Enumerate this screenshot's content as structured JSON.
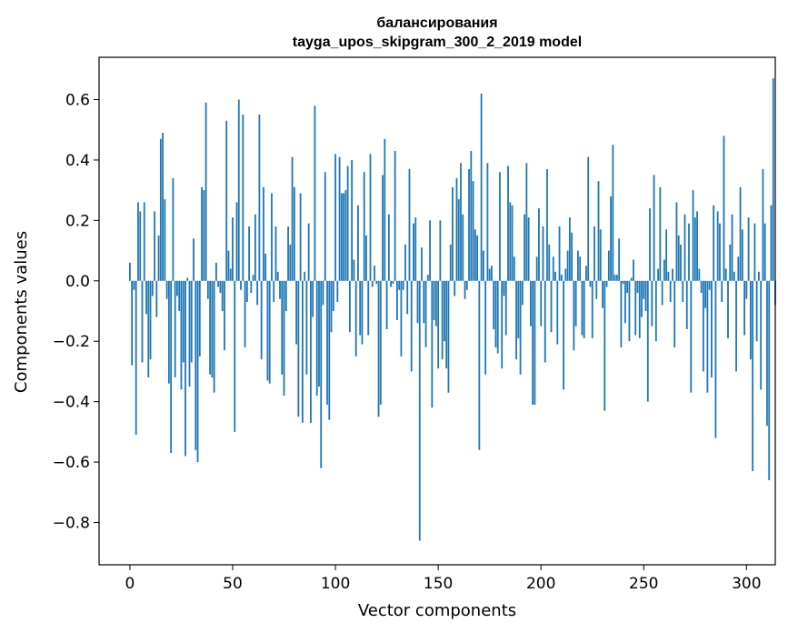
{
  "chart_data": {
    "type": "bar",
    "title_lines": [
      "балансирования",
      "tayga_upos_skipgram_300_2_2019 model"
    ],
    "xlabel": "Vector components",
    "ylabel": "Components values",
    "xlim": [
      -15,
      314
    ],
    "ylim": [
      -0.94,
      0.74
    ],
    "x_ticks": [
      0,
      50,
      100,
      150,
      200,
      250,
      300
    ],
    "x_tick_labels": [
      "0",
      "50",
      "100",
      "150",
      "200",
      "250",
      "300"
    ],
    "y_ticks": [
      -0.8,
      -0.6,
      -0.4,
      -0.2,
      0.0,
      0.2,
      0.4,
      0.6
    ],
    "y_tick_labels": [
      "−0.8",
      "−0.6",
      "−0.4",
      "−0.2",
      "0.0",
      "0.2",
      "0.4",
      "0.6"
    ],
    "grid": false,
    "bar_color": "#1f77b4",
    "values": [
      0.06,
      -0.28,
      -0.03,
      -0.51,
      0.26,
      0.23,
      -0.27,
      0.26,
      -0.11,
      -0.32,
      -0.26,
      -0.05,
      0.23,
      -0.12,
      0.15,
      0.47,
      0.49,
      0.27,
      -0.06,
      -0.34,
      -0.57,
      0.34,
      -0.32,
      -0.05,
      -0.1,
      -0.36,
      -0.27,
      -0.58,
      0.01,
      -0.35,
      -0.27,
      0.14,
      -0.56,
      -0.6,
      -0.25,
      0.31,
      0.3,
      0.59,
      -0.06,
      -0.31,
      -0.32,
      -0.37,
      0.06,
      -0.02,
      -0.04,
      -0.1,
      -0.23,
      0.53,
      0.1,
      0.04,
      0.21,
      -0.5,
      0.26,
      0.6,
      -0.03,
      0.55,
      -0.22,
      -0.07,
      0.18,
      -0.04,
      0.02,
      0.22,
      -0.08,
      0.55,
      -0.26,
      0.31,
      0.09,
      -0.33,
      -0.34,
      0.29,
      -0.07,
      0.18,
      0.03,
      -0.06,
      -0.31,
      -0.38,
      -0.1,
      0.18,
      0.12,
      0.41,
      0.31,
      -0.21,
      -0.45,
      0.29,
      -0.47,
      0.03,
      -0.31,
      0.19,
      -0.47,
      -0.12,
      0.58,
      -0.38,
      -0.35,
      -0.62,
      -0.08,
      0.36,
      -0.41,
      -0.46,
      -0.17,
      -0.1,
      0.42,
      -0.07,
      0.41,
      0.29,
      0.29,
      0.3,
      0.38,
      -0.17,
      0.4,
      0.07,
      -0.25,
      0.25,
      -0.18,
      -0.21,
      0.36,
      0.15,
      -0.18,
      0.42,
      -0.02,
      0.05,
      -0.01,
      -0.45,
      -0.41,
      0.35,
      0.47,
      -0.16,
      0.22,
      -0.02,
      -0.01,
      0.43,
      -0.13,
      -0.03,
      -0.25,
      -0.03,
      0.12,
      -0.11,
      0.37,
      -0.3,
      0.19,
      0.21,
      -0.14,
      -0.86,
      0.11,
      -0.14,
      -0.22,
      0.02,
      0.2,
      -0.42,
      -0.13,
      -0.15,
      -0.29,
      0.2,
      -0.26,
      -0.2,
      -0.29,
      -0.37,
      0.12,
      0.31,
      -0.05,
      0.34,
      0.27,
      0.39,
      0.22,
      -0.06,
      -0.03,
      0.37,
      0.43,
      0.33,
      0.17,
      0.15,
      -0.56,
      0.62,
      0.1,
      -0.31,
      0.39,
      0.04,
      0.05,
      -0.16,
      -0.22,
      -0.24,
      0.36,
      -0.29,
      -0.05,
      -0.18,
      0.38,
      0.26,
      0.25,
      0.08,
      -0.26,
      -0.19,
      -0.31,
      -0.08,
      0.22,
      0.39,
      0.21,
      -0.15,
      -0.41,
      -0.41,
      0.08,
      0.24,
      -0.15,
      0.18,
      -0.27,
      0.37,
      0.12,
      -0.17,
      0.08,
      0.03,
      -0.21,
      0.18,
      0.02,
      -0.36,
      0.04,
      0.1,
      0.21,
      0.16,
      -0.23,
      -0.15,
      0.1,
      0.08,
      -0.18,
      -0.19,
      0.05,
      0.41,
      -0.02,
      -0.19,
      0.18,
      -0.06,
      0.33,
      0.17,
      -0.09,
      -0.43,
      -0.02,
      0.1,
      0.28,
      0.45,
      0.02,
      0.02,
      0.14,
      -0.22,
      -0.01,
      -0.14,
      -0.04,
      -0.2,
      0.01,
      0.07,
      -0.18,
      -0.04,
      -0.19,
      -0.12,
      -0.06,
      -0.1,
      -0.4,
      0.24,
      -0.15,
      0.35,
      -0.2,
      0.04,
      0.31,
      -0.08,
      0.07,
      0.17,
      0.03,
      -0.07,
      0.04,
      -0.22,
      0.26,
      0.15,
      0.12,
      -0.07,
      0.22,
      -0.16,
      0.19,
      -0.37,
      0.3,
      0.21,
      0.23,
      0.04,
      -0.04,
      -0.3,
      -0.09,
      -0.37,
      -0.03,
      -0.32,
      0.25,
      -0.52,
      0.23,
      0.19,
      -0.07,
      0.48,
      0.04,
      -0.19,
      0.12,
      0.22,
      0.03,
      -0.3,
      0.08,
      0.31,
      0.17,
      -0.18,
      -0.06,
      0.21,
      -0.26,
      -0.63,
      0.19,
      -0.2,
      0.03,
      -0.36,
      0.37,
      0.19,
      -0.48,
      -0.66,
      0.25,
      0.67,
      -0.08
    ]
  }
}
